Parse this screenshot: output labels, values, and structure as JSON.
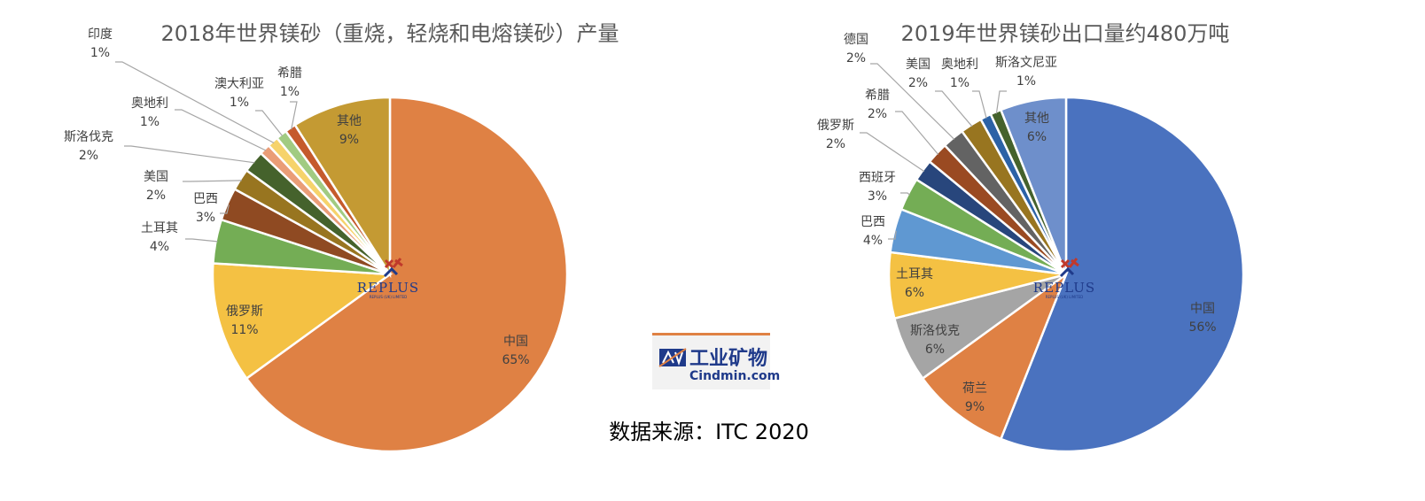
{
  "chart_data": [
    {
      "type": "pie",
      "title": "2018年世界镁砂（重烧，轻烧和电熔镁砂）产量",
      "slices": [
        {
          "label": "中国",
          "value": 65,
          "pct": "65%",
          "color": "#df8144"
        },
        {
          "label": "俄罗斯",
          "value": 11,
          "pct": "11%",
          "color": "#f4c143"
        },
        {
          "label": "土耳其",
          "value": 4,
          "pct": "4%",
          "color": "#74ad55"
        },
        {
          "label": "巴西",
          "value": 3,
          "pct": "3%",
          "color": "#8f4a22"
        },
        {
          "label": "美国",
          "value": 2,
          "pct": "2%",
          "color": "#987520"
        },
        {
          "label": "斯洛伐克",
          "value": 2,
          "pct": "2%",
          "color": "#45622c"
        },
        {
          "label": "奥地利",
          "value": 1,
          "pct": "1%",
          "color": "#ea9d77"
        },
        {
          "label": "印度",
          "value": 1,
          "pct": "1%",
          "color": "#f6d36b"
        },
        {
          "label": "澳大利亚",
          "value": 1,
          "pct": "1%",
          "color": "#a1cb82"
        },
        {
          "label": "希腊",
          "value": 1,
          "pct": "1%",
          "color": "#c55a2c"
        },
        {
          "label": "其他",
          "value": 9,
          "pct": "9%",
          "color": "#c49a33"
        }
      ]
    },
    {
      "type": "pie",
      "title": "2019年世界镁砂出口量约480万吨",
      "slices": [
        {
          "label": "中国",
          "value": 56,
          "pct": "56%",
          "color": "#4a72bf"
        },
        {
          "label": "荷兰",
          "value": 9,
          "pct": "9%",
          "color": "#df8144"
        },
        {
          "label": "斯洛伐克",
          "value": 6,
          "pct": "6%",
          "color": "#a5a5a5"
        },
        {
          "label": "土耳其",
          "value": 6,
          "pct": "6%",
          "color": "#f4c143"
        },
        {
          "label": "巴西",
          "value": 4,
          "pct": "4%",
          "color": "#5f98d2"
        },
        {
          "label": "西班牙",
          "value": 3,
          "pct": "3%",
          "color": "#74ad55"
        },
        {
          "label": "俄罗斯",
          "value": 2,
          "pct": "2%",
          "color": "#28467c"
        },
        {
          "label": "希腊",
          "value": 2,
          "pct": "2%",
          "color": "#9a4a22"
        },
        {
          "label": "德国",
          "value": 2,
          "pct": "2%",
          "color": "#636363"
        },
        {
          "label": "美国",
          "value": 2,
          "pct": "2%",
          "color": "#987520"
        },
        {
          "label": "奥地利",
          "value": 1,
          "pct": "1%",
          "color": "#2c62a6"
        },
        {
          "label": "斯洛文尼亚",
          "value": 1,
          "pct": "1%",
          "color": "#45622c"
        },
        {
          "label": "其他",
          "value": 6,
          "pct": "6%",
          "color": "#6e8fcb"
        }
      ]
    }
  ],
  "source_note": "数据来源：ITC 2020",
  "logo": {
    "cn": "工业矿物",
    "en": "Cindmin.com",
    "badge": "IM"
  },
  "watermark": {
    "name": "REPLUS",
    "sub": "REPLUS (UK) LIMITED"
  }
}
